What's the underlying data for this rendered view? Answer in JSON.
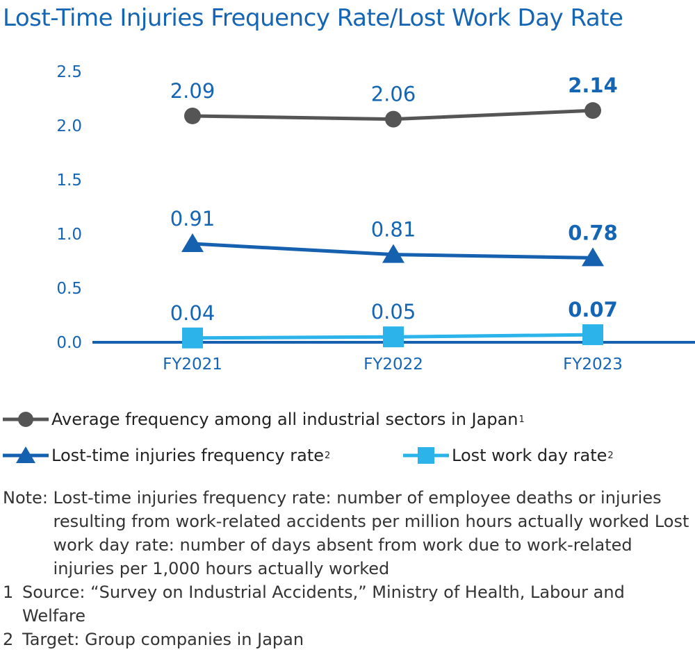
{
  "title": "Lost-Time Injuries Frequency Rate/Lost Work Day Rate",
  "chart_data": {
    "type": "line",
    "title": "Lost-Time Injuries Frequency Rate/Lost Work Day Rate",
    "categories": [
      "FY2021",
      "FY2022",
      "FY2023"
    ],
    "yticks": [
      "2.5",
      "2.0",
      "1.5",
      "1.0",
      "0.5",
      "0.0"
    ],
    "ylim": [
      0,
      2.5
    ],
    "grid": false,
    "legend_placement": "bottom",
    "series": [
      {
        "name": "Average frequency among all industrial sectors in Japan",
        "marker": "circle",
        "color": "#555555",
        "values": [
          2.09,
          2.06,
          2.14
        ],
        "labels": [
          "2.09",
          "2.06",
          "2.14"
        ]
      },
      {
        "name": "Lost-time injuries frequency rate",
        "marker": "triangle",
        "color": "#1660b0",
        "values": [
          0.91,
          0.81,
          0.78
        ],
        "labels": [
          "0.91",
          "0.81",
          "0.78"
        ]
      },
      {
        "name": "Lost work day rate",
        "marker": "square",
        "color": "#2bb3ea",
        "values": [
          0.04,
          0.05,
          0.07
        ],
        "labels": [
          "0.04",
          "0.05",
          "0.07"
        ]
      }
    ]
  },
  "legend": {
    "avg": {
      "label": "Average frequency among all industrial sectors in Japan",
      "sup": "1"
    },
    "ltifr": {
      "label": "Lost-time injuries frequency rate",
      "sup": "2"
    },
    "lwdr": {
      "label": "Lost work day rate",
      "sup": "2"
    }
  },
  "notes": {
    "note_prefix": "Note: ",
    "note_text": "Lost-time injuries frequency rate: number of employee deaths or injuries resulting from work-related accidents per million hours actually worked Lost work day rate: number of days absent from work due to work-related injuries per 1,000 hours actually worked",
    "footnotes": [
      {
        "num": "1",
        "text": "Source: “Survey on Industrial Accidents,” Ministry of Health, Labour and Welfare"
      },
      {
        "num": "2",
        "text": "Target: Group companies in Japan"
      }
    ]
  }
}
